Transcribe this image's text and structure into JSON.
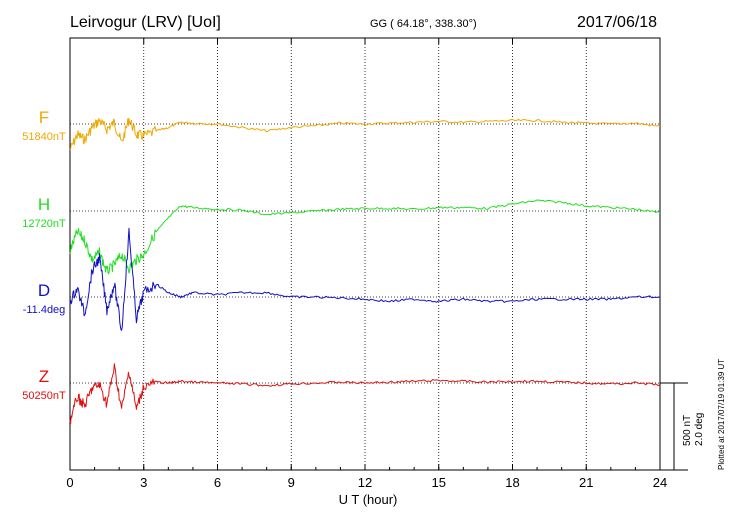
{
  "header": {
    "station": "Leirvogur (LRV)  [UoI]",
    "coords": "GG ( 64.18°, 338.30°)",
    "date": "2017/06/18"
  },
  "footer": {
    "plotted": "Plotted at 2017/07/19 01:39 UT"
  },
  "scale_bar": {
    "nt": "500 nT",
    "deg": "2.0 deg"
  },
  "colors": {
    "F": "#f0a800",
    "H": "#20e020",
    "D": "#1010c8",
    "Z": "#e01010",
    "axis": "#000000"
  },
  "chart_data": {
    "type": "line",
    "xlabel": "U T (hour)",
    "xlim": [
      0,
      24
    ],
    "xticks": [
      "0",
      "3",
      "6",
      "9",
      "12",
      "15",
      "18",
      "21",
      "24"
    ],
    "grid": true,
    "series": [
      {
        "name": "F",
        "baseline": "51840nT",
        "x": [
          0,
          0.3,
          0.6,
          0.9,
          1.2,
          1.5,
          1.8,
          2.1,
          2.4,
          2.7,
          3.0,
          3.5,
          4.0,
          4.5,
          5.0,
          6.0,
          7.0,
          8.0,
          9.0,
          10.0,
          11.0,
          12.0,
          13.0,
          14.0,
          15.0,
          16.0,
          17.0,
          18.0,
          19.0,
          20.0,
          21.0,
          22.0,
          23.0,
          24.0
        ],
        "offset_nt": [
          -150,
          -60,
          -90,
          -20,
          20,
          -30,
          10,
          -110,
          30,
          -60,
          -70,
          -40,
          -20,
          10,
          5,
          0,
          -20,
          -40,
          -20,
          -10,
          5,
          0,
          5,
          10,
          15,
          10,
          15,
          20,
          20,
          10,
          5,
          0,
          5,
          -15
        ]
      },
      {
        "name": "H",
        "baseline": "12720nT",
        "x": [
          0,
          0.3,
          0.6,
          0.9,
          1.2,
          1.5,
          1.8,
          2.1,
          2.4,
          2.7,
          3.0,
          3.5,
          4.0,
          4.5,
          5.0,
          6.0,
          7.0,
          8.0,
          9.0,
          10.0,
          11.0,
          12.0,
          13.0,
          14.0,
          15.0,
          16.0,
          17.0,
          18.0,
          19.0,
          20.0,
          21.0,
          22.0,
          23.0,
          24.0
        ],
        "offset_nt": [
          -230,
          -120,
          -170,
          -280,
          -240,
          -350,
          -310,
          -250,
          -330,
          -280,
          -250,
          -120,
          -40,
          30,
          20,
          10,
          5,
          -20,
          -10,
          0,
          10,
          15,
          15,
          10,
          20,
          20,
          15,
          40,
          60,
          50,
          30,
          20,
          10,
          -10
        ]
      },
      {
        "name": "D",
        "baseline": "-11.4deg",
        "x": [
          0,
          0.3,
          0.6,
          0.9,
          1.2,
          1.5,
          1.8,
          2.1,
          2.4,
          2.7,
          3.0,
          3.5,
          4.0,
          4.5,
          5.0,
          6.0,
          7.0,
          8.0,
          9.0,
          10.0,
          11.0,
          12.0,
          13.0,
          14.0,
          15.0,
          16.0,
          17.0,
          18.0,
          19.0,
          20.0,
          21.0,
          22.0,
          23.0,
          24.0
        ],
        "offset_deg": [
          -0.1,
          0.2,
          -0.4,
          0.6,
          0.9,
          -0.3,
          0.3,
          -0.8,
          1.5,
          -0.5,
          0.1,
          0.3,
          0.1,
          0.0,
          0.1,
          0.05,
          0.1,
          0.1,
          0.0,
          0.0,
          -0.02,
          -0.05,
          -0.1,
          -0.05,
          -0.1,
          -0.05,
          -0.1,
          -0.1,
          -0.05,
          -0.05,
          -0.05,
          -0.05,
          0.0,
          0.0
        ]
      },
      {
        "name": "Z",
        "baseline": "50250nT",
        "x": [
          0,
          0.3,
          0.6,
          0.9,
          1.2,
          1.5,
          1.8,
          2.1,
          2.4,
          2.7,
          3.0,
          3.5,
          4.0,
          4.5,
          5.0,
          6.0,
          7.0,
          8.0,
          9.0,
          10.0,
          11.0,
          12.0,
          13.0,
          14.0,
          15.0,
          16.0,
          17.0,
          18.0,
          19.0,
          20.0,
          21.0,
          22.0,
          23.0,
          24.0
        ],
        "offset_nt": [
          -220,
          -80,
          -130,
          -30,
          -10,
          -120,
          90,
          -150,
          70,
          -150,
          -20,
          5,
          0,
          10,
          5,
          0,
          -5,
          -15,
          -5,
          0,
          5,
          0,
          5,
          10,
          15,
          10,
          5,
          10,
          10,
          5,
          0,
          -5,
          0,
          -10
        ]
      }
    ]
  }
}
